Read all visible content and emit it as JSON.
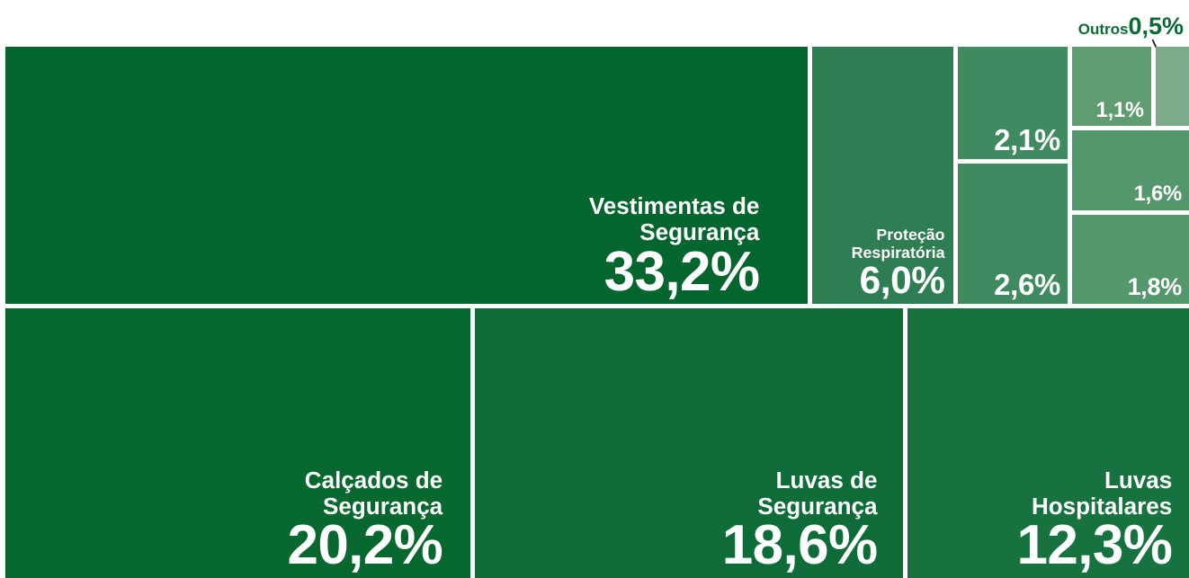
{
  "chart_data": {
    "type": "treemap",
    "categories": [
      "Vestimentas de Segurança",
      "Proteção Respiratória",
      null,
      null,
      null,
      "Outros",
      null,
      null,
      "Calçados de Segurança",
      "Luvas de Segurança",
      "Luvas Hospitalares"
    ],
    "values": [
      33.2,
      6.0,
      2.1,
      2.6,
      1.1,
      0.5,
      1.6,
      1.8,
      20.2,
      18.6,
      12.3
    ],
    "value_labels": [
      "33,2%",
      "6,0%",
      "2,1%",
      "2,6%",
      "1,1%",
      "0,5%",
      "1,6%",
      "1,8%",
      "20,2%",
      "18,6%",
      "12,3%"
    ],
    "colors": [
      "#05652f",
      "#2f7d52",
      "#3f8a5f",
      "#3f8a5f",
      "#5f9c72",
      "#7aac89",
      "#55976c",
      "#55976c",
      "#06672f",
      "#0d6c38",
      "#16723f"
    ]
  }
}
